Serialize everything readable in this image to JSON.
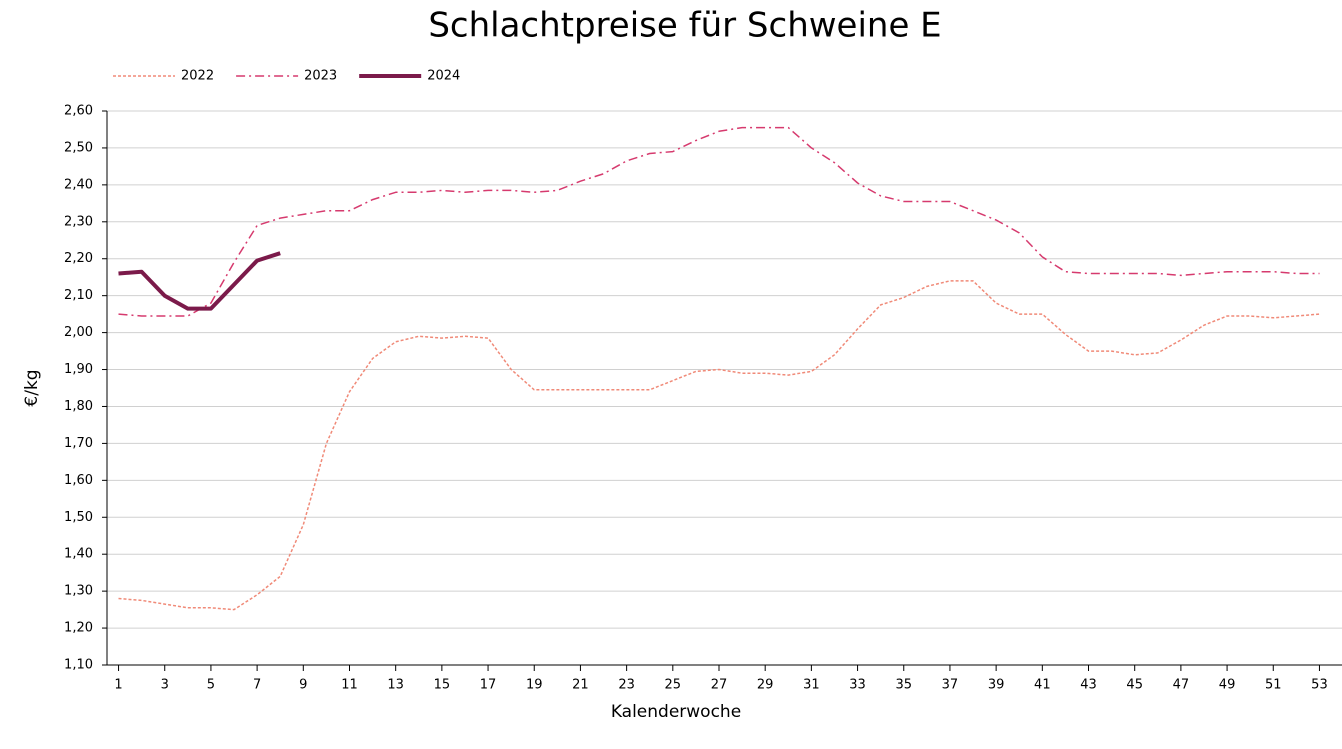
{
  "chart_data": {
    "type": "line",
    "title": "Schlachtpreise für Schweine E",
    "x_label": "Kalenderwoche",
    "y_label": "€/kg",
    "x": [
      1,
      2,
      3,
      4,
      5,
      6,
      7,
      8,
      9,
      10,
      11,
      12,
      13,
      14,
      15,
      16,
      17,
      18,
      19,
      20,
      21,
      22,
      23,
      24,
      25,
      26,
      27,
      28,
      29,
      30,
      31,
      32,
      33,
      34,
      35,
      36,
      37,
      38,
      39,
      40,
      41,
      42,
      43,
      44,
      45,
      46,
      47,
      48,
      49,
      50,
      51,
      52,
      53
    ],
    "xlim": [
      0.5,
      53.5
    ],
    "xticks": [
      1,
      3,
      5,
      7,
      9,
      11,
      13,
      15,
      17,
      19,
      21,
      23,
      25,
      27,
      29,
      31,
      33,
      35,
      37,
      39,
      41,
      43,
      45,
      47,
      49,
      51,
      53
    ],
    "ylim": [
      1.1,
      2.6
    ],
    "yticks": [
      {
        "value": 1.1,
        "label": "1,10"
      },
      {
        "value": 1.2,
        "label": "1,20"
      },
      {
        "value": 1.3,
        "label": "1,30"
      },
      {
        "value": 1.4,
        "label": "1,40"
      },
      {
        "value": 1.5,
        "label": "1,50"
      },
      {
        "value": 1.6,
        "label": "1,60"
      },
      {
        "value": 1.7,
        "label": "1,70"
      },
      {
        "value": 1.8,
        "label": "1,80"
      },
      {
        "value": 1.9,
        "label": "1,90"
      },
      {
        "value": 2.0,
        "label": "2,00"
      },
      {
        "value": 2.1,
        "label": "2,10"
      },
      {
        "value": 2.2,
        "label": "2,20"
      },
      {
        "value": 2.3,
        "label": "2,30"
      },
      {
        "value": 2.4,
        "label": "2,40"
      },
      {
        "value": 2.5,
        "label": "2,50"
      },
      {
        "value": 2.6,
        "label": "2,60"
      }
    ],
    "grid": true,
    "legend": "top-left",
    "series": [
      {
        "name": "2022",
        "color": "#f08a78",
        "line_style": "dotted",
        "values": [
          1.28,
          1.275,
          1.265,
          1.255,
          1.255,
          1.25,
          1.29,
          1.34,
          1.48,
          1.7,
          1.84,
          1.93,
          1.975,
          1.99,
          1.985,
          1.99,
          1.985,
          1.9,
          1.845,
          1.845,
          1.845,
          1.845,
          1.845,
          1.845,
          1.87,
          1.895,
          1.9,
          1.89,
          1.89,
          1.885,
          1.895,
          1.94,
          2.01,
          2.075,
          2.095,
          2.125,
          2.14,
          2.14,
          2.08,
          2.05,
          2.05,
          1.995,
          1.95,
          1.95,
          1.94,
          1.945,
          1.98,
          2.02,
          2.045,
          2.045,
          2.04,
          2.045,
          2.05
        ]
      },
      {
        "name": "2023",
        "color": "#d63a6e",
        "line_style": "dashdot",
        "values": [
          2.05,
          2.045,
          2.045,
          2.045,
          2.08,
          2.19,
          2.29,
          2.31,
          2.32,
          2.33,
          2.33,
          2.36,
          2.38,
          2.38,
          2.385,
          2.38,
          2.385,
          2.385,
          2.38,
          2.385,
          2.41,
          2.43,
          2.465,
          2.485,
          2.49,
          2.52,
          2.545,
          2.555,
          2.555,
          2.555,
          2.5,
          2.46,
          2.405,
          2.37,
          2.355,
          2.355,
          2.355,
          2.33,
          2.305,
          2.27,
          2.205,
          2.165,
          2.16,
          2.16,
          2.16,
          2.16,
          2.155,
          2.16,
          2.165,
          2.165,
          2.165,
          2.16,
          2.16
        ]
      },
      {
        "name": "2024",
        "color": "#7b1a4a",
        "line_style": "solid",
        "values": [
          2.16,
          2.165,
          2.1,
          2.065,
          2.065,
          2.13,
          2.195,
          2.215,
          null,
          null,
          null,
          null,
          null,
          null,
          null,
          null,
          null,
          null,
          null,
          null,
          null,
          null,
          null,
          null,
          null,
          null,
          null,
          null,
          null,
          null,
          null,
          null,
          null,
          null,
          null,
          null,
          null,
          null,
          null,
          null,
          null,
          null,
          null,
          null,
          null,
          null,
          null,
          null,
          null,
          null,
          null,
          null,
          null
        ]
      }
    ]
  }
}
